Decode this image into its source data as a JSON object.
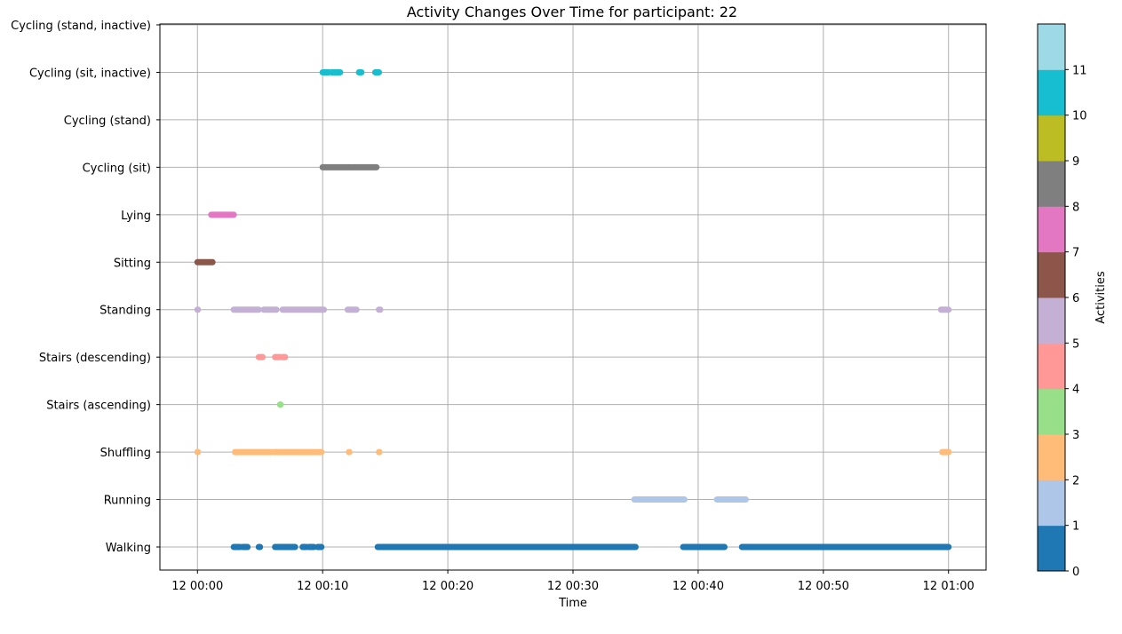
{
  "chart_data": {
    "type": "scatter",
    "title": "Activity Changes Over Time for participant: 22",
    "xlabel": "Time",
    "ylabel": "",
    "grid": true,
    "x_unit": "minutes after 12 00:00",
    "xlim": [
      -3,
      63
    ],
    "x_ticks": [
      0,
      10,
      20,
      30,
      40,
      50,
      60
    ],
    "x_tick_labels": [
      "12 00:00",
      "12 00:10",
      "12 00:20",
      "12 00:30",
      "12 00:40",
      "12 00:50",
      "12 01:00"
    ],
    "categories": [
      "Walking",
      "Running",
      "Shuffling",
      "Stairs (ascending)",
      "Stairs (descending)",
      "Standing",
      "Sitting",
      "Lying",
      "Cycling (sit)",
      "Cycling (stand)",
      "Cycling (sit, inactive)",
      "Cycling (stand, inactive)"
    ],
    "series": [
      {
        "category": "Walking",
        "activity": 0,
        "color": "#1f77b4",
        "segments": [
          [
            2.9,
            3.4
          ],
          [
            3.6,
            4.0
          ],
          [
            4.9,
            5.0
          ],
          [
            6.2,
            7.8
          ],
          [
            8.4,
            8.7
          ],
          [
            8.9,
            9.3
          ],
          [
            9.6,
            9.9
          ],
          [
            14.4,
            35.0
          ],
          [
            38.8,
            42.1
          ],
          [
            43.5,
            60.0
          ]
        ]
      },
      {
        "category": "Running",
        "activity": 1,
        "color": "#aec7e8",
        "segments": [
          [
            34.9,
            38.9
          ],
          [
            41.5,
            43.8
          ]
        ]
      },
      {
        "category": "Shuffling",
        "activity": 2,
        "color": "#ffbb78",
        "segments": [
          [
            0.0,
            0.0
          ],
          [
            3.0,
            5.9
          ],
          [
            6.1,
            6.5
          ],
          [
            6.6,
            8.3
          ],
          [
            8.4,
            9.9
          ],
          [
            12.1,
            12.1
          ],
          [
            14.5,
            14.5
          ],
          [
            59.5,
            60.0
          ]
        ]
      },
      {
        "category": "Stairs (ascending)",
        "activity": 3,
        "color": "#98df8a",
        "segments": [
          [
            6.6,
            6.6
          ]
        ]
      },
      {
        "category": "Stairs (descending)",
        "activity": 4,
        "color": "#ff9896",
        "segments": [
          [
            4.9,
            5.2
          ],
          [
            6.2,
            6.6
          ],
          [
            6.8,
            7.0
          ]
        ]
      },
      {
        "category": "Standing",
        "activity": 5,
        "color": "#c5b0d5",
        "segments": [
          [
            0.0,
            0.0
          ],
          [
            2.9,
            4.9
          ],
          [
            5.3,
            6.3
          ],
          [
            6.8,
            10.1
          ],
          [
            12.0,
            12.7
          ],
          [
            14.5,
            14.6
          ],
          [
            59.4,
            60.0
          ]
        ]
      },
      {
        "category": "Sitting",
        "activity": 6,
        "color": "#8c564b",
        "segments": [
          [
            0.0,
            1.2
          ]
        ]
      },
      {
        "category": "Lying",
        "activity": 7,
        "color": "#e377c2",
        "segments": [
          [
            1.1,
            2.9
          ]
        ]
      },
      {
        "category": "Cycling (sit)",
        "activity": 8,
        "color": "#7f7f7f",
        "segments": [
          [
            10.0,
            12.3
          ],
          [
            12.4,
            14.3
          ]
        ]
      },
      {
        "category": "Cycling (stand)",
        "activity": 9,
        "color": "#bcbd22",
        "segments": []
      },
      {
        "category": "Cycling (sit, inactive)",
        "activity": 10,
        "color": "#17becf",
        "segments": [
          [
            10.0,
            10.5
          ],
          [
            10.7,
            11.4
          ],
          [
            12.9,
            13.1
          ],
          [
            14.2,
            14.5
          ]
        ]
      },
      {
        "category": "Cycling (stand, inactive)",
        "activity": 11,
        "color": "#9edae5",
        "segments": []
      }
    ],
    "colorbar": {
      "label": "Activities",
      "ticks": [
        "0",
        "1",
        "2",
        "3",
        "4",
        "5",
        "6",
        "7",
        "8",
        "9",
        "10",
        "11"
      ],
      "range": [
        0,
        12
      ],
      "colors": [
        "#1f77b4",
        "#aec7e8",
        "#ffbb78",
        "#98df8a",
        "#ff9896",
        "#c5b0d5",
        "#8c564b",
        "#e377c2",
        "#7f7f7f",
        "#bcbd22",
        "#17becf",
        "#9edae5"
      ]
    }
  }
}
